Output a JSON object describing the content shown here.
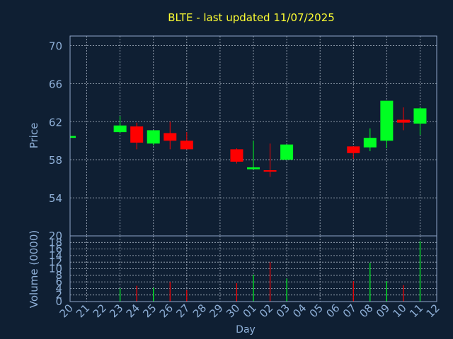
{
  "title": "BLTE - last updated 11/07/2025",
  "colors": {
    "background": "#0f1f33",
    "title": "#ffff33",
    "axis_text": "#8fb0d8",
    "frame": "#8fa6c8",
    "grid": "#c8d2e0",
    "up": "#00ff22",
    "down": "#ff0000"
  },
  "chart_data": [
    {
      "type": "candlestick",
      "ylabel": "Price",
      "ylim": [
        50,
        71
      ],
      "yticks": [
        54,
        58,
        62,
        66,
        70
      ],
      "grid": true,
      "x_ticks": [
        "20",
        "21",
        "22",
        "23",
        "24",
        "25",
        "26",
        "27",
        "28",
        "29",
        "30",
        "01",
        "02",
        "03",
        "04",
        "05",
        "06",
        "07",
        "08",
        "09",
        "10",
        "11",
        "12"
      ],
      "candles": [
        {
          "x": 0,
          "open": 60.3,
          "close": 60.5,
          "high": 60.5,
          "low": 60.3
        },
        {
          "x": 3,
          "open": 60.9,
          "close": 61.6,
          "high": 62.6,
          "low": 60.8
        },
        {
          "x": 4,
          "open": 61.5,
          "close": 59.8,
          "high": 61.9,
          "low": 59.1
        },
        {
          "x": 5,
          "open": 59.7,
          "close": 61.1,
          "high": 61.1,
          "low": 59.5
        },
        {
          "x": 6,
          "open": 60.8,
          "close": 60.0,
          "high": 62.0,
          "low": 59.1
        },
        {
          "x": 7,
          "open": 60.0,
          "close": 59.1,
          "high": 60.9,
          "low": 59.1
        },
        {
          "x": 10,
          "open": 59.1,
          "close": 57.8,
          "high": 59.2,
          "low": 57.6
        },
        {
          "x": 11,
          "open": 57.0,
          "close": 57.2,
          "high": 60.0,
          "low": 57.0
        },
        {
          "x": 12,
          "open": 56.9,
          "close": 56.8,
          "high": 59.7,
          "low": 56.2
        },
        {
          "x": 13,
          "open": 58.0,
          "close": 59.6,
          "high": 59.6,
          "low": 58.0
        },
        {
          "x": 17,
          "open": 59.4,
          "close": 58.7,
          "high": 59.4,
          "low": 58.1
        },
        {
          "x": 18,
          "open": 59.3,
          "close": 60.3,
          "high": 61.3,
          "low": 58.9
        },
        {
          "x": 19,
          "open": 60.0,
          "close": 64.2,
          "high": 64.2,
          "low": 59.2
        },
        {
          "x": 20,
          "open": 62.2,
          "close": 61.9,
          "high": 63.5,
          "low": 61.1
        },
        {
          "x": 21,
          "open": 61.8,
          "close": 63.4,
          "high": 63.5,
          "low": 60.6
        }
      ]
    },
    {
      "type": "bar",
      "ylabel": "Volume (0000)",
      "ylim": [
        0,
        20
      ],
      "yticks": [
        0,
        2,
        4,
        6,
        8,
        10,
        12,
        14,
        16,
        18,
        20
      ],
      "xlabel": "Day",
      "grid": true,
      "bars": [
        {
          "x": 3,
          "value": 4.0,
          "dir": "up"
        },
        {
          "x": 4,
          "value": 4.8,
          "dir": "down"
        },
        {
          "x": 5,
          "value": 4.2,
          "dir": "up"
        },
        {
          "x": 6,
          "value": 6.0,
          "dir": "down"
        },
        {
          "x": 7,
          "value": 3.5,
          "dir": "down"
        },
        {
          "x": 10,
          "value": 5.6,
          "dir": "down"
        },
        {
          "x": 11,
          "value": 8.2,
          "dir": "up"
        },
        {
          "x": 12,
          "value": 12.0,
          "dir": "down"
        },
        {
          "x": 13,
          "value": 7.0,
          "dir": "up"
        },
        {
          "x": 17,
          "value": 6.2,
          "dir": "down"
        },
        {
          "x": 18,
          "value": 11.8,
          "dir": "up"
        },
        {
          "x": 19,
          "value": 6.2,
          "dir": "up"
        },
        {
          "x": 20,
          "value": 5.0,
          "dir": "down"
        },
        {
          "x": 21,
          "value": 18.4,
          "dir": "up"
        }
      ]
    }
  ]
}
